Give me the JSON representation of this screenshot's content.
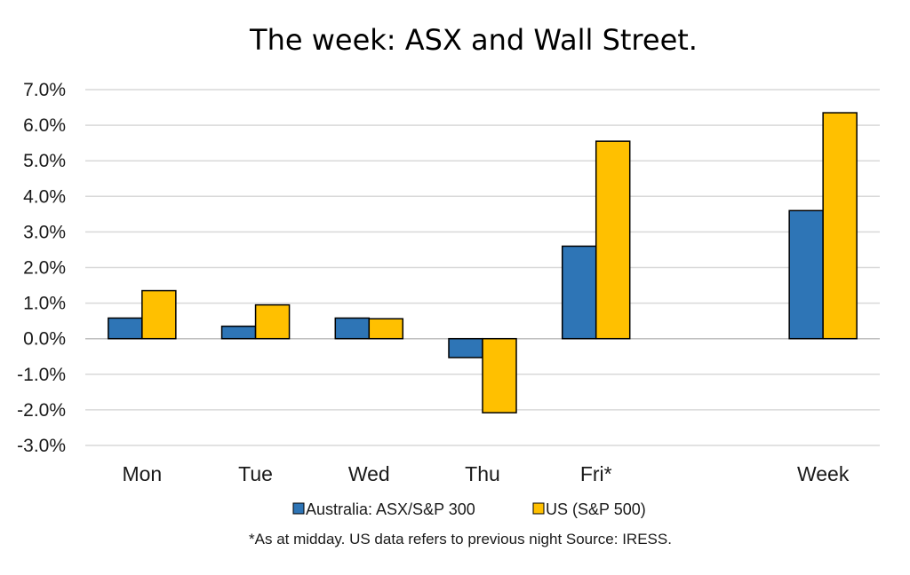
{
  "chart_data": {
    "type": "bar",
    "title": "The week:  ASX and Wall Street.",
    "categories": [
      "Mon",
      "Tue",
      "Wed",
      "Thu",
      "Fri*",
      "",
      "Week"
    ],
    "series": [
      {
        "name": "Australia: ASX/S&P 300",
        "color": "#2e75b6",
        "values": [
          0.58,
          0.35,
          0.58,
          -0.53,
          2.6,
          null,
          3.6
        ]
      },
      {
        "name": "US (S&P 500)",
        "color": "#ffc000",
        "values": [
          1.35,
          0.95,
          0.56,
          -2.08,
          5.55,
          null,
          6.35
        ]
      }
    ],
    "ylim": [
      -3.0,
      7.0
    ],
    "yticks": [
      7.0,
      6.0,
      5.0,
      4.0,
      3.0,
      2.0,
      1.0,
      0.0,
      -1.0,
      -2.0,
      -3.0
    ],
    "ytick_labels": [
      "7.0%",
      "6.0%",
      "5.0%",
      "4.0%",
      "3.0%",
      "2.0%",
      "1.0%",
      "0.0%",
      "-1.0%",
      "-2.0%",
      "-3.0%"
    ],
    "grid": true,
    "legend_position": "bottom",
    "note": "*As at midday. US data refers to previous night  Source:  IRESS."
  }
}
